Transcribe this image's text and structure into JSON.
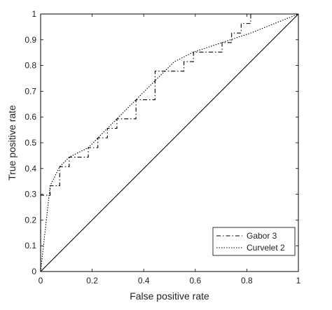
{
  "chart_data": {
    "type": "line",
    "title": "",
    "xlabel": "False positive rate",
    "ylabel": "True positive rate",
    "xlim": [
      0,
      1
    ],
    "ylim": [
      0,
      1
    ],
    "x_ticks": [
      "0",
      "0.2",
      "0.4",
      "0.6",
      "0.8",
      "1"
    ],
    "y_ticks": [
      "0",
      "0.1",
      "0.2",
      "0.3",
      "0.4",
      "0.5",
      "0.6",
      "0.7",
      "0.8",
      "0.9",
      "1"
    ],
    "grid": false,
    "legend_position": "bottom-right",
    "series": [
      {
        "name": "Gabor 3",
        "line_style": "dash-dot",
        "color": "#000000",
        "points": [
          [
            0,
            0
          ],
          [
            0,
            0.296
          ],
          [
            0.037,
            0.296
          ],
          [
            0.037,
            0.333
          ],
          [
            0.074,
            0.333
          ],
          [
            0.074,
            0.407
          ],
          [
            0.111,
            0.407
          ],
          [
            0.111,
            0.444
          ],
          [
            0.185,
            0.444
          ],
          [
            0.185,
            0.481
          ],
          [
            0.222,
            0.481
          ],
          [
            0.222,
            0.519
          ],
          [
            0.259,
            0.519
          ],
          [
            0.259,
            0.556
          ],
          [
            0.296,
            0.556
          ],
          [
            0.296,
            0.593
          ],
          [
            0.37,
            0.593
          ],
          [
            0.37,
            0.667
          ],
          [
            0.444,
            0.667
          ],
          [
            0.444,
            0.778
          ],
          [
            0.556,
            0.778
          ],
          [
            0.556,
            0.815
          ],
          [
            0.593,
            0.815
          ],
          [
            0.593,
            0.852
          ],
          [
            0.704,
            0.852
          ],
          [
            0.704,
            0.889
          ],
          [
            0.741,
            0.889
          ],
          [
            0.741,
            0.926
          ],
          [
            0.778,
            0.926
          ],
          [
            0.778,
            0.963
          ],
          [
            0.815,
            0.963
          ],
          [
            0.815,
            1
          ],
          [
            1,
            1
          ]
        ]
      },
      {
        "name": "Curvelet 2",
        "line_style": "dotted",
        "color": "#000000",
        "points": [
          [
            0,
            0
          ],
          [
            0.037,
            0.333
          ],
          [
            0.074,
            0.407
          ],
          [
            0.111,
            0.444
          ],
          [
            0.185,
            0.481
          ],
          [
            0.259,
            0.556
          ],
          [
            0.333,
            0.63
          ],
          [
            0.444,
            0.741
          ],
          [
            0.519,
            0.815
          ],
          [
            0.593,
            0.852
          ],
          [
            0.704,
            0.889
          ],
          [
            0.815,
            0.926
          ],
          [
            1,
            1
          ]
        ]
      },
      {
        "name": "",
        "line_style": "solid",
        "color": "#000000",
        "points": [
          [
            0,
            0
          ],
          [
            1,
            1
          ]
        ]
      }
    ]
  }
}
